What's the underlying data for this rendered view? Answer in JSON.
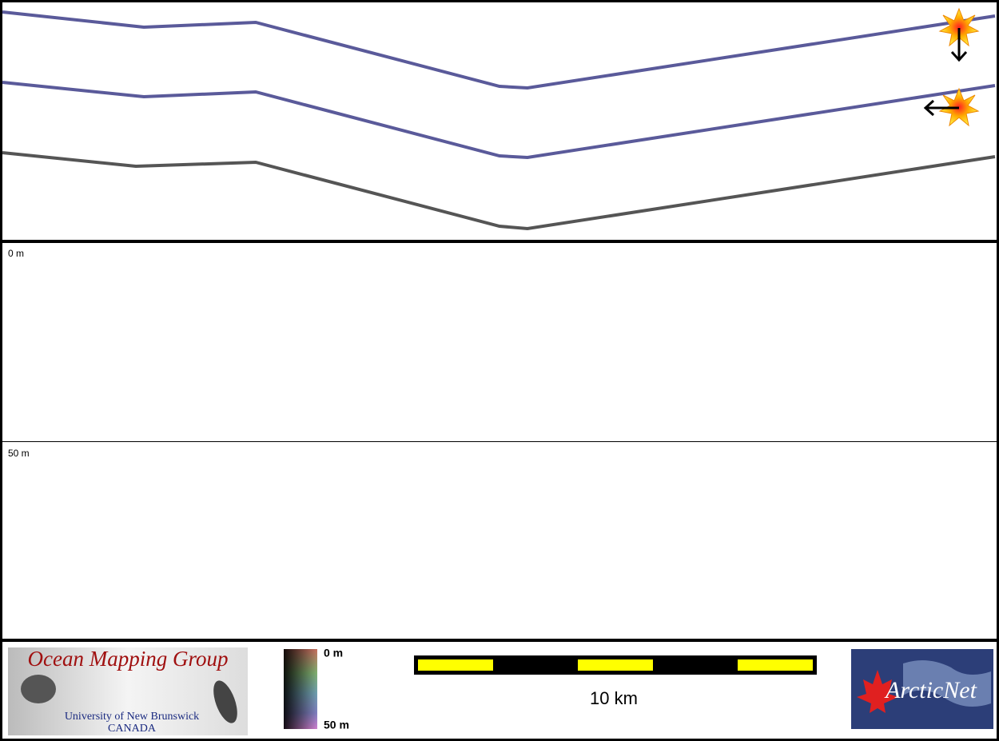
{
  "panels": [
    {
      "label": "0 m"
    },
    {
      "label": "50 m"
    }
  ],
  "legend": {
    "top": "0 m",
    "bottom": "50 m"
  },
  "scale_bar": {
    "label": "10 km"
  },
  "logos": {
    "left": {
      "title": "Ocean Mapping Group",
      "line1": "University of New Brunswick",
      "line2": "CANADA"
    },
    "right": {
      "title": "ArcticNet"
    }
  }
}
